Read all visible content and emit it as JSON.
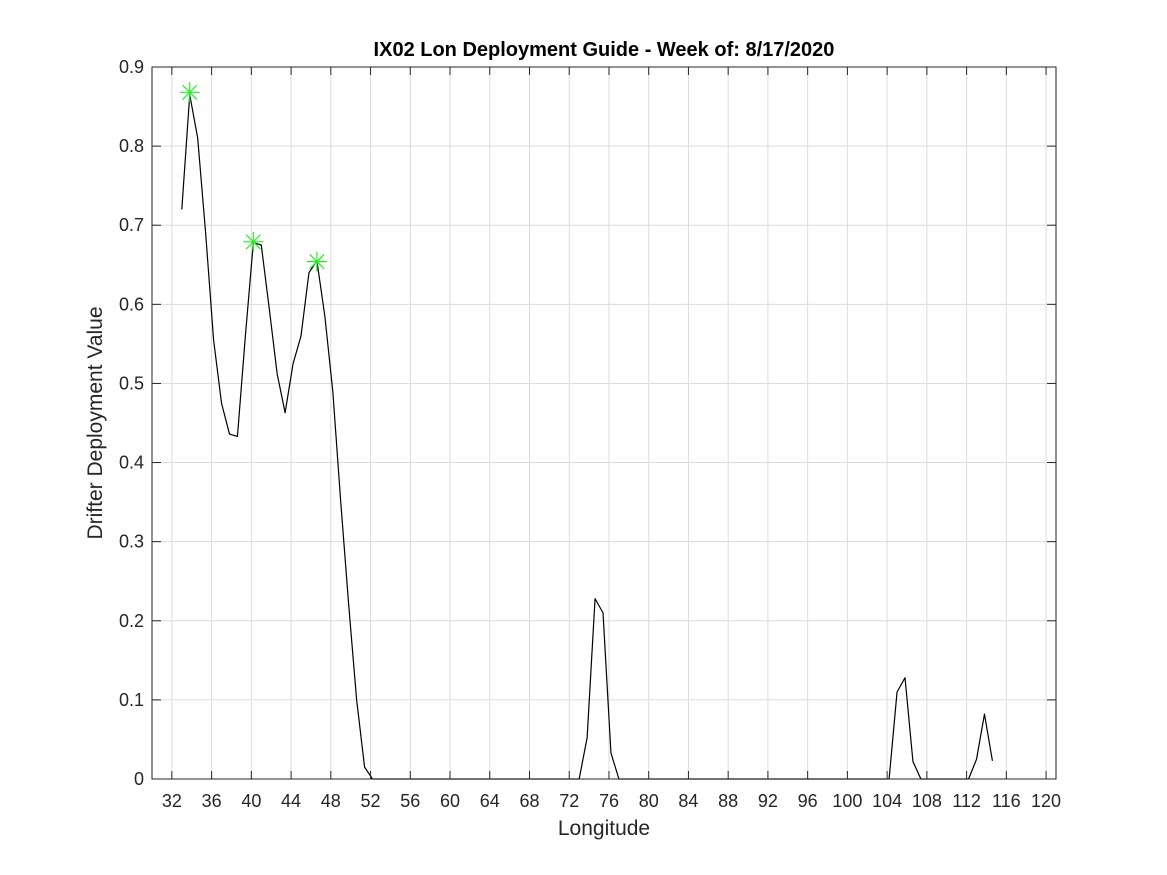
{
  "chart_data": {
    "type": "line",
    "title": "IX02 Lon Deployment Guide - Week of: 8/17/2020",
    "xlabel": "Longitude",
    "ylabel": "Drifter Deployment Value",
    "xlim": [
      30,
      121
    ],
    "ylim": [
      0,
      0.9
    ],
    "x_ticks": [
      32,
      36,
      40,
      44,
      48,
      52,
      56,
      60,
      64,
      68,
      72,
      76,
      80,
      84,
      88,
      92,
      96,
      100,
      104,
      108,
      112,
      116,
      120
    ],
    "y_ticks": [
      0,
      0.1,
      0.2,
      0.3,
      0.4,
      0.5,
      0.6,
      0.7,
      0.8,
      0.9
    ],
    "y_tick_labels": [
      "0",
      "0.1",
      "0.2",
      "0.3",
      "0.4",
      "0.5",
      "0.6",
      "0.7",
      "0.8",
      "0.9"
    ],
    "grid": true,
    "box": true,
    "series": [
      {
        "style": "line",
        "color": "#000000",
        "x": [
          33,
          33.8,
          34.6,
          35.4,
          36.2,
          37.0,
          37.8,
          38.6,
          39.4,
          40.2,
          41.0,
          41.8,
          42.6,
          43.4,
          44.2,
          45.0,
          45.8,
          46.6,
          47.4,
          48.2,
          49.0,
          49.8,
          50.6,
          51.4,
          52.2,
          53.0,
          54,
          56,
          60,
          64,
          68,
          72,
          73.0,
          73.8,
          74.6,
          75.4,
          76.2,
          77.0,
          80,
          84,
          88,
          92,
          96,
          100,
          104,
          104.2,
          105.0,
          105.8,
          106.6,
          107.4,
          108,
          112,
          112.2,
          113.0,
          113.8,
          114.6
        ],
        "y": [
          0.72,
          0.865,
          0.81,
          0.69,
          0.555,
          0.475,
          0.436,
          0.433,
          0.56,
          0.678,
          0.675,
          0.595,
          0.512,
          0.463,
          0.525,
          0.56,
          0.64,
          0.655,
          0.585,
          0.49,
          0.35,
          0.22,
          0.1,
          0.015,
          0,
          0,
          0,
          0,
          0,
          0,
          0,
          0,
          0,
          0.052,
          0.228,
          0.21,
          0.033,
          0,
          0,
          0,
          0,
          0,
          0,
          0,
          0,
          0,
          0.11,
          0.128,
          0.022,
          0,
          0,
          0,
          0,
          0.025,
          0.082,
          0.023
        ]
      },
      {
        "style": "markers",
        "marker": "asterisk",
        "color": "#22ee22",
        "x": [
          33.8,
          40.2,
          46.6
        ],
        "y": [
          0.868,
          0.679,
          0.654
        ]
      }
    ]
  }
}
